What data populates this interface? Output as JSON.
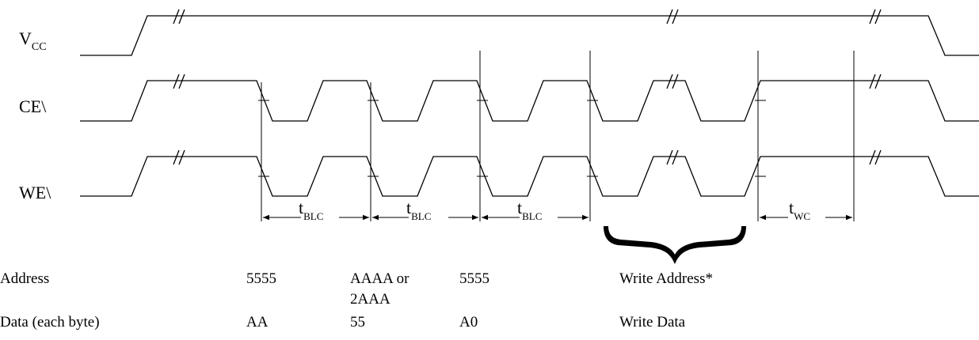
{
  "signals": {
    "vcc": {
      "name": "V",
      "sub": "CC"
    },
    "ce": {
      "name": "CE\\"
    },
    "we": {
      "name": "WE\\"
    }
  },
  "timing": {
    "blc": {
      "t": "t",
      "sub": "BLC"
    },
    "wc": {
      "t": "t",
      "sub": "WC"
    }
  },
  "table": {
    "address": {
      "label": "Address",
      "cells": [
        "5555",
        "AAAA or",
        "2AAA",
        "5555",
        "Write Address*"
      ]
    },
    "data": {
      "label": "Data (each byte)",
      "cells": [
        "AA",
        "55",
        "A0",
        "Write Data"
      ]
    }
  }
}
